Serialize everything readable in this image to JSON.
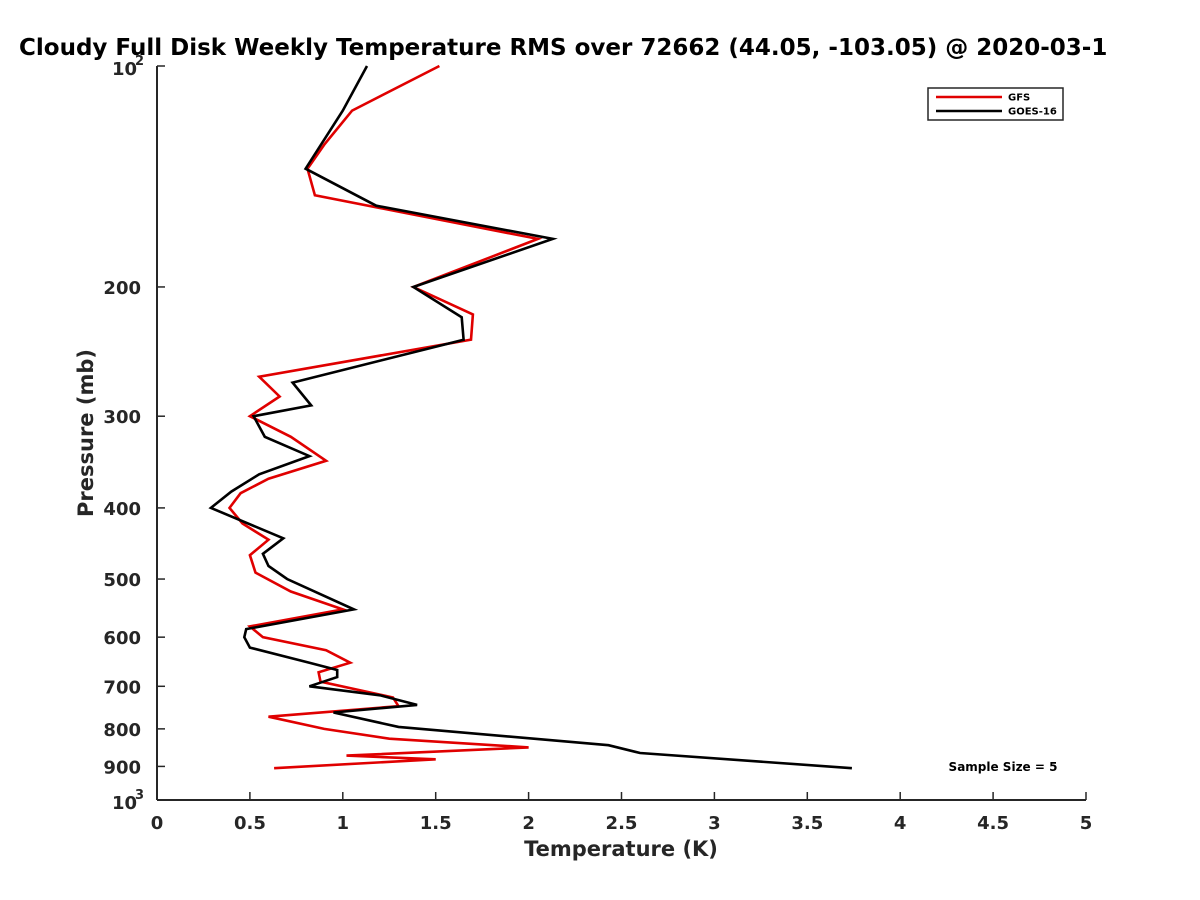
{
  "chart_data": {
    "type": "line",
    "title": "Cloudy Full Disk Weekly Temperature RMS over 72662 (44.05, -103.05) @ 2020-03-1",
    "xlabel": "Temperature (K)",
    "ylabel": "Pressure (mb)",
    "xlim": [
      0,
      5
    ],
    "ylim": [
      100,
      1000
    ],
    "y_scale": "log",
    "y_reversed": true,
    "grid": false,
    "legend_position": "top-right",
    "x_ticks": [
      {
        "value": 0,
        "label": "0"
      },
      {
        "value": 0.5,
        "label": "0.5"
      },
      {
        "value": 1,
        "label": "1"
      },
      {
        "value": 1.5,
        "label": "1.5"
      },
      {
        "value": 2,
        "label": "2"
      },
      {
        "value": 2.5,
        "label": "2.5"
      },
      {
        "value": 3,
        "label": "3"
      },
      {
        "value": 3.5,
        "label": "3.5"
      },
      {
        "value": 4,
        "label": "4"
      },
      {
        "value": 4.5,
        "label": "4.5"
      },
      {
        "value": 5,
        "label": "5"
      }
    ],
    "y_ticks": [
      {
        "value": 100,
        "base": "10",
        "exp": "2"
      },
      {
        "value": 200,
        "label": "200"
      },
      {
        "value": 300,
        "label": "300"
      },
      {
        "value": 400,
        "label": "400"
      },
      {
        "value": 500,
        "label": "500"
      },
      {
        "value": 600,
        "label": "600"
      },
      {
        "value": 700,
        "label": "700"
      },
      {
        "value": 800,
        "label": "800"
      },
      {
        "value": 900,
        "label": "900"
      },
      {
        "value": 1000,
        "base": "10",
        "exp": "3"
      }
    ],
    "annotation": "Sample Size = 5",
    "series": [
      {
        "name": "GFS",
        "color": "#e00000",
        "points": [
          [
            1.52,
            100
          ],
          [
            1.05,
            115
          ],
          [
            0.9,
            128
          ],
          [
            0.81,
            138
          ],
          [
            0.85,
            150
          ],
          [
            2.05,
            172
          ],
          [
            1.38,
            200
          ],
          [
            1.7,
            218
          ],
          [
            1.69,
            236
          ],
          [
            0.55,
            265
          ],
          [
            0.66,
            282
          ],
          [
            0.5,
            300
          ],
          [
            0.72,
            320
          ],
          [
            0.91,
            345
          ],
          [
            0.6,
            365
          ],
          [
            0.45,
            382
          ],
          [
            0.39,
            400
          ],
          [
            0.46,
            420
          ],
          [
            0.6,
            442
          ],
          [
            0.5,
            464
          ],
          [
            0.53,
            490
          ],
          [
            0.72,
            520
          ],
          [
            1.0,
            550
          ],
          [
            0.5,
            580
          ],
          [
            0.57,
            600
          ],
          [
            0.91,
            625
          ],
          [
            1.04,
            650
          ],
          [
            0.87,
            670
          ],
          [
            0.88,
            690
          ],
          [
            1.27,
            725
          ],
          [
            1.3,
            745
          ],
          [
            0.6,
            770
          ],
          [
            0.9,
            800
          ],
          [
            1.25,
            825
          ],
          [
            2.0,
            848
          ],
          [
            1.02,
            870
          ],
          [
            1.5,
            880
          ],
          [
            0.63,
            905
          ]
        ]
      },
      {
        "name": "GOES-16",
        "color": "#000000",
        "points": [
          [
            1.13,
            100
          ],
          [
            1.0,
            115
          ],
          [
            0.8,
            138
          ],
          [
            1.18,
            155
          ],
          [
            2.13,
            172
          ],
          [
            1.38,
            200
          ],
          [
            1.64,
            220
          ],
          [
            1.65,
            236
          ],
          [
            0.73,
            270
          ],
          [
            0.83,
            290
          ],
          [
            0.52,
            300
          ],
          [
            0.58,
            320
          ],
          [
            0.82,
            340
          ],
          [
            0.55,
            360
          ],
          [
            0.4,
            380
          ],
          [
            0.29,
            400
          ],
          [
            0.68,
            440
          ],
          [
            0.57,
            462
          ],
          [
            0.6,
            480
          ],
          [
            0.7,
            500
          ],
          [
            1.06,
            550
          ],
          [
            0.48,
            585
          ],
          [
            0.47,
            600
          ],
          [
            0.5,
            620
          ],
          [
            0.82,
            650
          ],
          [
            0.97,
            665
          ],
          [
            0.97,
            680
          ],
          [
            0.82,
            700
          ],
          [
            1.2,
            720
          ],
          [
            1.4,
            742
          ],
          [
            0.95,
            760
          ],
          [
            1.3,
            795
          ],
          [
            2.43,
            842
          ],
          [
            2.6,
            863
          ],
          [
            3.74,
            905
          ]
        ]
      }
    ]
  }
}
